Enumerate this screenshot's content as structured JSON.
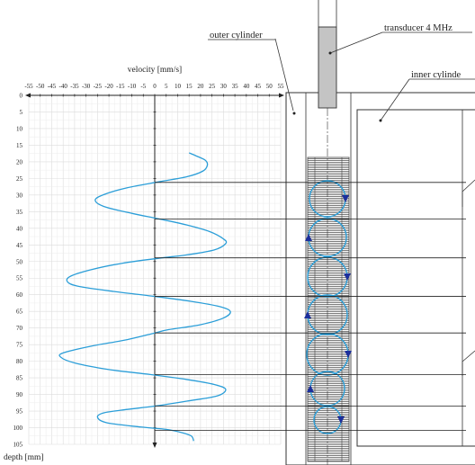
{
  "labels": {
    "velocity_axis": "velocity [mm/s]",
    "depth_axis": "depth [mm]",
    "outer_cylinder": "outer cylinder",
    "transducer": "transducer 4 MHz",
    "inner_cylinder": "inner cylinde"
  },
  "chart_data": {
    "type": "line",
    "xlabel": "velocity [mm/s]",
    "ylabel": "depth [mm]",
    "xlim": [
      -55,
      55
    ],
    "ylim": [
      0,
      105
    ],
    "x_ticks": [
      -55,
      -50,
      -45,
      -40,
      -35,
      -30,
      -25,
      -20,
      -15,
      -10,
      -5,
      0,
      5,
      10,
      15,
      20,
      25,
      30,
      35,
      40,
      45,
      50,
      55
    ],
    "y_ticks": [
      0,
      5,
      10,
      15,
      20,
      25,
      30,
      35,
      40,
      45,
      50,
      55,
      60,
      65,
      70,
      75,
      80,
      85,
      90,
      95,
      100,
      105
    ],
    "grid": true,
    "series": [
      {
        "color": "#2b9ed8",
        "points": [
          [
            15,
            17.3
          ],
          [
            18,
            18.2
          ],
          [
            22,
            19.5
          ],
          [
            23,
            21
          ],
          [
            21,
            22.8
          ],
          [
            14,
            24.5
          ],
          [
            2,
            26
          ],
          [
            -12,
            27.8
          ],
          [
            -22,
            29.8
          ],
          [
            -26,
            31.5
          ],
          [
            -22,
            33.5
          ],
          [
            -10,
            35.5
          ],
          [
            2,
            37.2
          ],
          [
            14,
            39
          ],
          [
            24,
            41
          ],
          [
            30,
            43.2
          ],
          [
            31,
            44.6
          ],
          [
            26,
            46.5
          ],
          [
            14,
            48
          ],
          [
            2,
            49
          ],
          [
            -14,
            50.5
          ],
          [
            -28,
            52.5
          ],
          [
            -37,
            54.5
          ],
          [
            -38,
            56.2
          ],
          [
            -33,
            57.5
          ],
          [
            -18,
            59
          ],
          [
            0,
            60.5
          ],
          [
            16,
            62
          ],
          [
            28,
            63.5
          ],
          [
            33,
            65
          ],
          [
            30,
            67
          ],
          [
            20,
            69
          ],
          [
            6,
            70.5
          ],
          [
            0,
            71.5
          ],
          [
            -12,
            73.5
          ],
          [
            -28,
            75.5
          ],
          [
            -40,
            77.5
          ],
          [
            -41,
            78.8
          ],
          [
            -35,
            80.5
          ],
          [
            -20,
            82.5
          ],
          [
            -2,
            84
          ],
          [
            14,
            85.5
          ],
          [
            26,
            87
          ],
          [
            31,
            88.5
          ],
          [
            27,
            90.5
          ],
          [
            14,
            92
          ],
          [
            0,
            93.5
          ],
          [
            -12,
            94.5
          ],
          [
            -22,
            95.5
          ],
          [
            -25,
            96.8
          ],
          [
            -21,
            98.5
          ],
          [
            -6,
            99.8
          ],
          [
            5,
            100.5
          ],
          [
            12,
            101.5
          ],
          [
            16,
            102.5
          ],
          [
            17,
            104
          ]
        ]
      }
    ]
  },
  "diagram": {
    "vortex_count": 7,
    "colors": {
      "vortex": "#2b9ed8",
      "arrow": "#1c2f9c",
      "profile": "#2b9ed8"
    }
  }
}
